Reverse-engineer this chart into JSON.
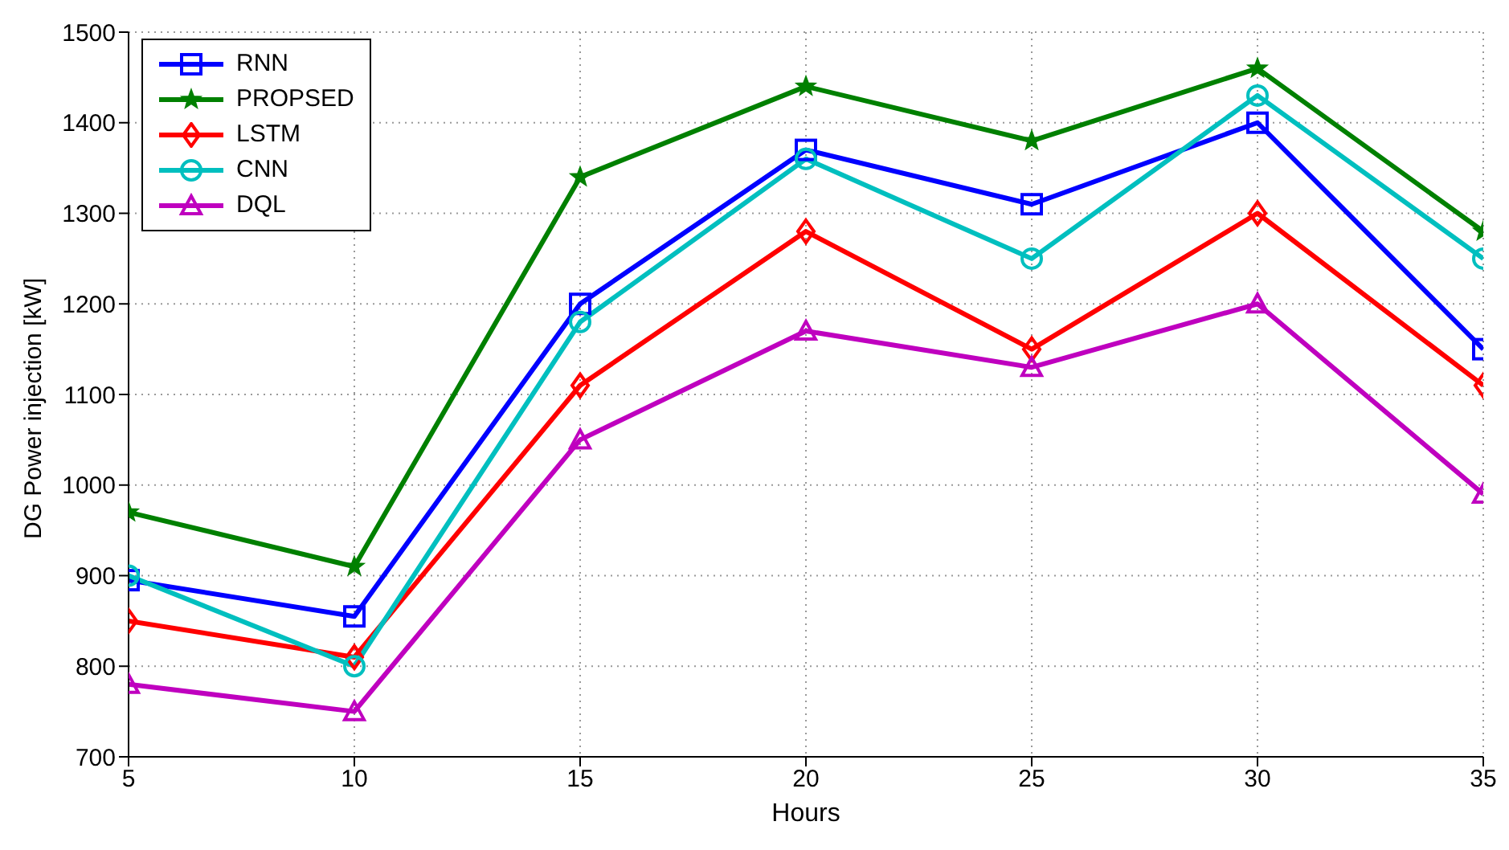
{
  "chart_data": {
    "type": "line",
    "xlabel": "Hours",
    "ylabel": "DG Power injection [kW]",
    "x": [
      5,
      10,
      15,
      20,
      25,
      30,
      35
    ],
    "xlim": [
      5,
      35
    ],
    "xticks": [
      5,
      10,
      15,
      20,
      25,
      30,
      35
    ],
    "ylim": [
      700,
      1500
    ],
    "yticks": [
      700,
      800,
      900,
      1000,
      1100,
      1200,
      1300,
      1400,
      1500
    ],
    "grid": true,
    "legend": "top left",
    "line_style": "solid",
    "series": [
      {
        "name": "RNN",
        "color": "#0000ff",
        "marker": "square",
        "values": [
          895,
          855,
          1200,
          1370,
          1310,
          1400,
          1150
        ]
      },
      {
        "name": "PROPSED",
        "color": "#008000",
        "marker": "star",
        "values": [
          970,
          910,
          1340,
          1440,
          1380,
          1460,
          1280
        ]
      },
      {
        "name": "LSTM",
        "color": "#ff0000",
        "marker": "diamond",
        "values": [
          850,
          810,
          1110,
          1280,
          1150,
          1300,
          1110
        ]
      },
      {
        "name": "CNN",
        "color": "#00bfbf",
        "marker": "circle",
        "values": [
          900,
          800,
          1180,
          1360,
          1250,
          1430,
          1250
        ]
      },
      {
        "name": "DQL",
        "color": "#bf00bf",
        "marker": "triangle",
        "values": [
          780,
          750,
          1050,
          1170,
          1130,
          1200,
          990
        ]
      }
    ]
  }
}
